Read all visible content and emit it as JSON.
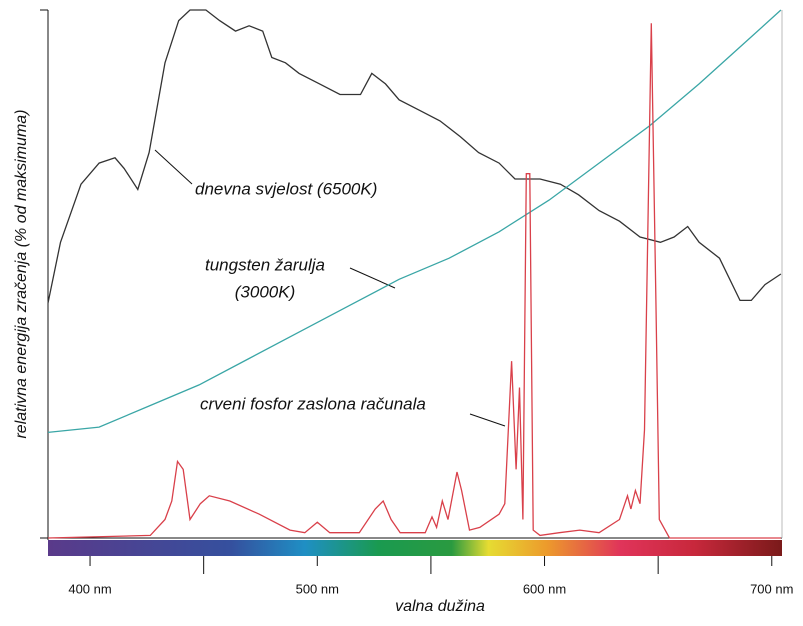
{
  "chart_data": {
    "type": "line",
    "ylabel": "relativna energija zračenja (% od maksimuma)",
    "xlabel": "valna dužina",
    "xlim": [
      381.5,
      704.5
    ],
    "ylim": [
      0,
      100
    ],
    "xticks": [
      {
        "value": 400,
        "label": "400 nm"
      },
      {
        "value": 500,
        "label": "500 nm"
      },
      {
        "value": 600,
        "label": "600 nm"
      },
      {
        "value": 700,
        "label": "700 nm"
      }
    ],
    "xminorticks": [
      450,
      550,
      650
    ],
    "annotations": [
      {
        "text": "dnevna svjelost (6500K)"
      },
      {
        "text": "tungsten žarulja"
      },
      {
        "text": "(3000K)"
      },
      {
        "text": "crveni fosfor zaslona računala"
      }
    ],
    "series": [
      {
        "color": "#333333",
        "x": [
          381.5,
          387,
          396,
          404,
          411,
          415,
          421,
          426,
          433,
          439,
          444,
          451,
          457,
          464,
          470,
          476,
          480,
          486,
          492,
          501,
          510,
          519,
          524,
          530,
          536,
          545,
          554,
          563,
          571,
          580,
          587,
          591,
          598,
          607,
          615,
          624,
          633,
          642,
          651,
          657,
          663,
          668,
          677,
          686,
          691,
          697,
          704
        ],
        "values": [
          44.5,
          56,
          67,
          71,
          72,
          70,
          66,
          73,
          90,
          98,
          100,
          100,
          98,
          96,
          97,
          96,
          91,
          90,
          88,
          86,
          84,
          84,
          88,
          86,
          83,
          81,
          79,
          76,
          73,
          71,
          68,
          68,
          68,
          67,
          65,
          62,
          60,
          57,
          56,
          57,
          59,
          56,
          53,
          45,
          45,
          48,
          50
        ]
      },
      {
        "color": "#3aa6a6",
        "x": [
          381.5,
          404,
          426,
          448,
          470,
          492,
          514,
          536,
          558,
          580,
          602,
          624,
          646,
          668,
          686,
          704
        ],
        "values": [
          20,
          21,
          25,
          29,
          34,
          39,
          44,
          49,
          53,
          58,
          64,
          71,
          78,
          86,
          93,
          100
        ]
      },
      {
        "color": "#d9404a",
        "x": [
          381.5,
          426.5,
          433,
          436,
          438.5,
          441,
          444,
          448.5,
          452.5,
          461.5,
          474.5,
          488,
          494.5,
          500,
          505.5,
          518.5,
          525.5,
          529,
          532.5,
          536.5,
          547.5,
          550.5,
          552.5,
          555,
          557.5,
          561.5,
          563.5,
          567,
          571.5,
          580,
          582.5,
          585.5,
          587.5,
          589,
          590.5,
          592,
          593.5,
          595,
          598,
          606.5,
          615.5,
          624,
          633,
          636.5,
          638,
          640,
          642,
          644,
          647,
          649,
          650.5,
          655,
          704
        ],
        "values": [
          0,
          0.5,
          3.5,
          7,
          14.5,
          13,
          3.5,
          6.5,
          8,
          7,
          4.5,
          1.5,
          1,
          3,
          1,
          1,
          5.5,
          7,
          3.5,
          1,
          1,
          4,
          2,
          7,
          3.5,
          12.5,
          9,
          1.5,
          2,
          4.5,
          6.5,
          33.5,
          13,
          28.5,
          3.5,
          69,
          69,
          1.5,
          0.5,
          1,
          1.5,
          1,
          3.5,
          8,
          5.5,
          9,
          6.5,
          20.5,
          97.5,
          45,
          3.5,
          0,
          0
        ]
      }
    ]
  }
}
